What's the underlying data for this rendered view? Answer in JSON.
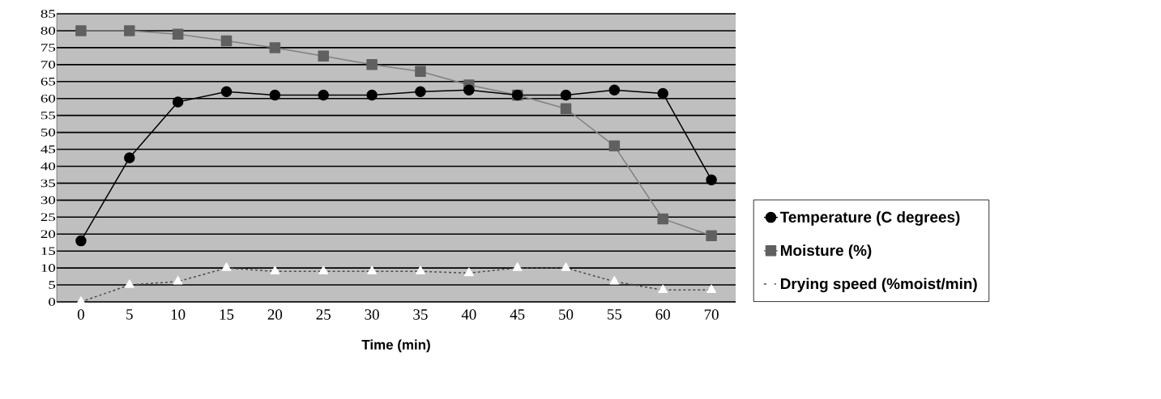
{
  "chart_data": {
    "type": "line",
    "xlabel": "Time (min)",
    "categories": [
      "0",
      "5",
      "10",
      "15",
      "20",
      "25",
      "30",
      "35",
      "40",
      "45",
      "50",
      "55",
      "60",
      "70"
    ],
    "series": [
      {
        "name": "Temperature (C degrees)",
        "color": "#000000",
        "marker": "circle",
        "values": [
          18,
          42.5,
          59,
          62,
          61,
          61,
          61,
          62,
          62.5,
          61,
          61,
          62.5,
          61.5,
          36
        ]
      },
      {
        "name": "Moisture (%)",
        "color": "#606060",
        "marker": "square",
        "values": [
          80,
          80,
          79,
          77,
          75,
          72.5,
          70,
          68,
          64,
          61,
          57,
          46,
          24.5,
          19.5
        ]
      },
      {
        "name": "Drying speed (%moist/min)",
        "color": "#ffffff",
        "marker": "triangle",
        "line_style": "dashed",
        "values": [
          0,
          5,
          6,
          10,
          9,
          9,
          9,
          9,
          8.5,
          10,
          10,
          6,
          3.5,
          3.5
        ]
      }
    ],
    "ylim": [
      0,
      85
    ],
    "yticks": [
      0,
      5,
      10,
      15,
      20,
      25,
      30,
      35,
      40,
      45,
      50,
      55,
      60,
      65,
      70,
      75,
      80,
      85
    ],
    "grid": "y",
    "legend": "right"
  }
}
